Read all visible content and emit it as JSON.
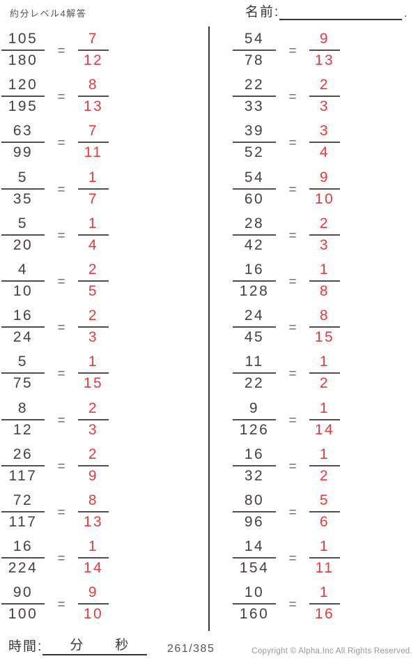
{
  "header": {
    "title": "約分レベル4解答",
    "name_label": "名前:",
    "name_line_period": "."
  },
  "equals_sign": "=",
  "colors": {
    "ink": "#474040",
    "answer_red": "#e8393d",
    "fraction_bar": "#564c4c",
    "divider": "#3b3434",
    "copyright_gray": "#9b9595"
  },
  "problems": {
    "left": [
      {
        "numerator": "105",
        "denominator": "180",
        "answer_numerator": "7",
        "answer_denominator": "12"
      },
      {
        "numerator": "120",
        "denominator": "195",
        "answer_numerator": "8",
        "answer_denominator": "13"
      },
      {
        "numerator": "63",
        "denominator": "99",
        "answer_numerator": "7",
        "answer_denominator": "11"
      },
      {
        "numerator": "5",
        "denominator": "35",
        "answer_numerator": "1",
        "answer_denominator": "7"
      },
      {
        "numerator": "5",
        "denominator": "20",
        "answer_numerator": "1",
        "answer_denominator": "4"
      },
      {
        "numerator": "4",
        "denominator": "10",
        "answer_numerator": "2",
        "answer_denominator": "5"
      },
      {
        "numerator": "16",
        "denominator": "24",
        "answer_numerator": "2",
        "answer_denominator": "3"
      },
      {
        "numerator": "5",
        "denominator": "75",
        "answer_numerator": "1",
        "answer_denominator": "15"
      },
      {
        "numerator": "8",
        "denominator": "12",
        "answer_numerator": "2",
        "answer_denominator": "3"
      },
      {
        "numerator": "26",
        "denominator": "117",
        "answer_numerator": "2",
        "answer_denominator": "9"
      },
      {
        "numerator": "72",
        "denominator": "117",
        "answer_numerator": "8",
        "answer_denominator": "13"
      },
      {
        "numerator": "16",
        "denominator": "224",
        "answer_numerator": "1",
        "answer_denominator": "14"
      },
      {
        "numerator": "90",
        "denominator": "100",
        "answer_numerator": "9",
        "answer_denominator": "10"
      }
    ],
    "right": [
      {
        "numerator": "54",
        "denominator": "78",
        "answer_numerator": "9",
        "answer_denominator": "13"
      },
      {
        "numerator": "22",
        "denominator": "33",
        "answer_numerator": "2",
        "answer_denominator": "3"
      },
      {
        "numerator": "39",
        "denominator": "52",
        "answer_numerator": "3",
        "answer_denominator": "4"
      },
      {
        "numerator": "54",
        "denominator": "60",
        "answer_numerator": "9",
        "answer_denominator": "10"
      },
      {
        "numerator": "28",
        "denominator": "42",
        "answer_numerator": "2",
        "answer_denominator": "3"
      },
      {
        "numerator": "16",
        "denominator": "128",
        "answer_numerator": "1",
        "answer_denominator": "8"
      },
      {
        "numerator": "24",
        "denominator": "45",
        "answer_numerator": "8",
        "answer_denominator": "15"
      },
      {
        "numerator": "11",
        "denominator": "22",
        "answer_numerator": "1",
        "answer_denominator": "2"
      },
      {
        "numerator": "9",
        "denominator": "126",
        "answer_numerator": "1",
        "answer_denominator": "14"
      },
      {
        "numerator": "16",
        "denominator": "32",
        "answer_numerator": "1",
        "answer_denominator": "2"
      },
      {
        "numerator": "80",
        "denominator": "96",
        "answer_numerator": "5",
        "answer_denominator": "6"
      },
      {
        "numerator": "14",
        "denominator": "154",
        "answer_numerator": "1",
        "answer_denominator": "11"
      },
      {
        "numerator": "10",
        "denominator": "160",
        "answer_numerator": "1",
        "answer_denominator": "16"
      }
    ]
  },
  "footer": {
    "time_label": "時間:",
    "minutes_label": "分",
    "seconds_label": "秒",
    "page_number": "261/385",
    "copyright": "Copyright ©  Alpha.Inc All Rights Reserved."
  }
}
